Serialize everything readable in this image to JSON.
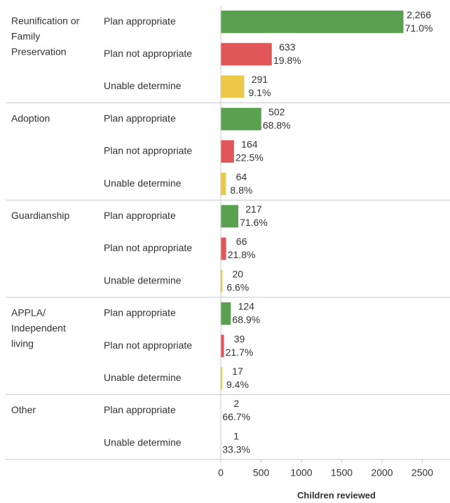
{
  "chart_data": {
    "type": "bar",
    "x_label": "Children reviewed",
    "xlim": [
      0,
      2800
    ],
    "xticks": [
      0,
      500,
      1000,
      1500,
      2000,
      2500
    ],
    "groups": [
      {
        "name": [
          "Reunification or",
          "Family",
          "Preservation"
        ],
        "categories": [
          "Plan appropriate",
          "Plan not appropriate",
          "Unable determine"
        ],
        "colors": [
          "#59a14f",
          "#e15759",
          "#edc948"
        ],
        "values": [
          2266,
          633,
          291
        ],
        "value_labels": [
          "2,266",
          "633",
          "291"
        ],
        "percents": [
          71.0,
          19.8,
          9.1
        ],
        "percent_labels": [
          "71.0%",
          "19.8%",
          "9.1%"
        ]
      },
      {
        "name": [
          "Adoption"
        ],
        "categories": [
          "Plan appropriate",
          "Plan not appropriate",
          "Unable determine"
        ],
        "colors": [
          "#59a14f",
          "#e15759",
          "#edc948"
        ],
        "values": [
          502,
          164,
          64
        ],
        "percents": [
          68.8,
          22.5,
          8.8
        ],
        "percent_labels": [
          "68.8%",
          "22.5%",
          "8.8%"
        ]
      },
      {
        "name": [
          "Guardianship"
        ],
        "categories": [
          "Plan appropriate",
          "Plan not appropriate",
          "Unable determine"
        ],
        "colors": [
          "#59a14f",
          "#e15759",
          "#edc948"
        ],
        "values": [
          217,
          66,
          20
        ],
        "percents": [
          71.6,
          21.8,
          6.6
        ],
        "percent_labels": [
          "71.6%",
          "21.8%",
          "6.6%"
        ]
      },
      {
        "name": [
          "APPLA/",
          "Independent",
          "living"
        ],
        "categories": [
          "Plan appropriate",
          "Plan not appropriate",
          "Unable determine"
        ],
        "colors": [
          "#59a14f",
          "#e15759",
          "#edc948"
        ],
        "values": [
          124,
          39,
          17
        ],
        "percents": [
          68.9,
          21.7,
          9.4
        ],
        "percent_labels": [
          "68.9%",
          "21.7%",
          "9.4%"
        ]
      },
      {
        "name": [
          "Other"
        ],
        "categories": [
          "Plan appropriate",
          "Unable determine"
        ],
        "colors": [
          "#59a14f",
          "#edc948"
        ],
        "values": [
          2,
          1
        ],
        "percents": [
          66.7,
          33.3
        ],
        "percent_labels": [
          "66.7%",
          "33.3%"
        ]
      }
    ]
  }
}
